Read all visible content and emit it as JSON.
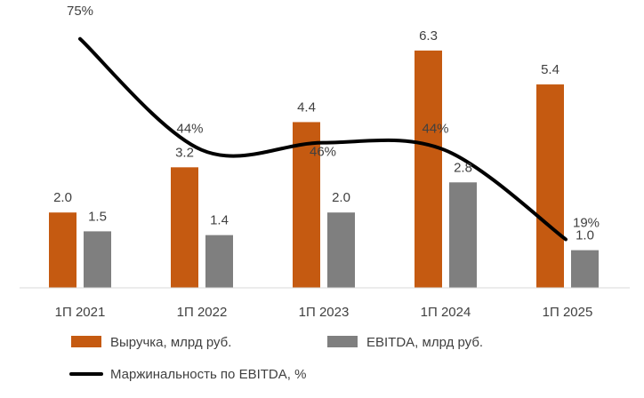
{
  "chart_data": {
    "type": "bar",
    "categories": [
      "1П 2021",
      "1П 2022",
      "1П 2023",
      "1П 2024",
      "1П 2025"
    ],
    "series": [
      {
        "name": "Выручка, млрд руб.",
        "kind": "bar",
        "color": "#c55a11",
        "values": [
          2.0,
          3.2,
          4.4,
          6.3,
          5.4
        ],
        "labels": [
          "2.0",
          "3.2",
          "4.4",
          "6.3",
          "5.4"
        ]
      },
      {
        "name": "EBITDA, млрд руб.",
        "kind": "bar",
        "color": "#7f7f7f",
        "values": [
          1.5,
          1.4,
          2.0,
          2.8,
          1.0
        ],
        "labels": [
          "1.5",
          "1.4",
          "2.0",
          "2.8",
          "1.0"
        ]
      },
      {
        "name": "Маржинальность по EBITDA, %",
        "kind": "line",
        "smooth": true,
        "color": "#000000",
        "values": [
          75,
          44,
          46,
          44,
          19
        ],
        "labels": [
          "75%",
          "44%",
          "46%",
          "44%",
          "19%"
        ]
      }
    ],
    "legend_position": "bottom",
    "grid": false
  }
}
